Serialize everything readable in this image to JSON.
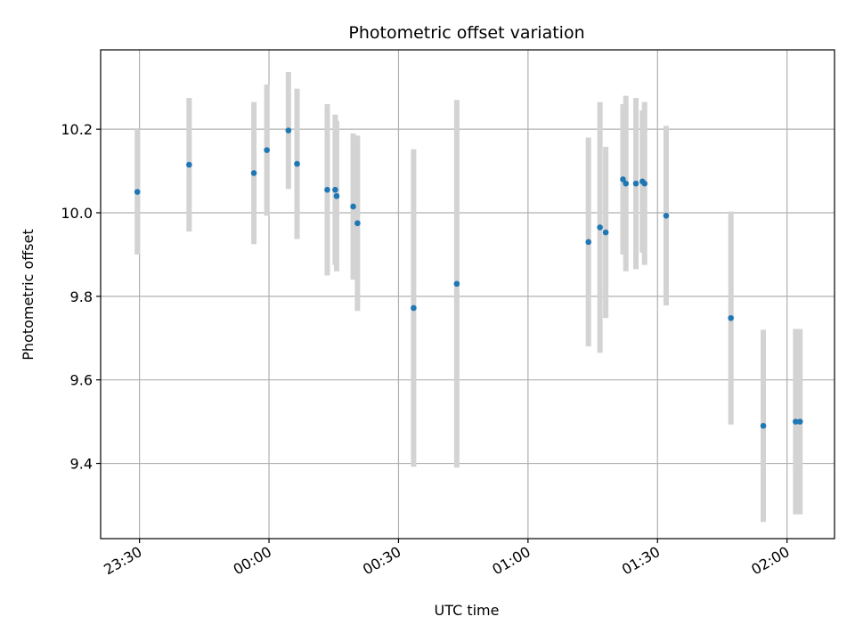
{
  "chart_data": {
    "type": "scatter",
    "title": "Photometric offset variation",
    "xlabel": "UTC time",
    "ylabel": "Photometric offset",
    "x_axis": {
      "kind": "time",
      "range": [
        "23:21",
        "02:11"
      ],
      "ticks": [
        "23:30",
        "00:00",
        "00:30",
        "01:00",
        "01:30",
        "02:00"
      ]
    },
    "y_axis": {
      "range": [
        9.22,
        10.39
      ],
      "ticks": [
        9.4,
        9.6,
        9.8,
        10.0,
        10.2
      ],
      "tick_labels": [
        "9.4",
        "9.6",
        "9.8",
        "10.0",
        "10.2"
      ]
    },
    "grid": true,
    "colors": {
      "point": "#1f77b4",
      "errorbar": "#d3d3d3",
      "grid": "#b0b0b0",
      "axes": "#000000"
    },
    "points": [
      {
        "time": "23:29:30",
        "y": 10.05,
        "err": 0.15
      },
      {
        "time": "23:41:30",
        "y": 10.115,
        "err": 0.16
      },
      {
        "time": "23:56:30",
        "y": 10.095,
        "err": 0.17
      },
      {
        "time": "23:59:30",
        "y": 10.15,
        "err": 0.157
      },
      {
        "time": "00:04:30",
        "y": 10.197,
        "err": 0.14
      },
      {
        "time": "00:06:30",
        "y": 10.117,
        "err": 0.18
      },
      {
        "time": "00:13:30",
        "y": 10.055,
        "err": 0.205
      },
      {
        "time": "00:15:20",
        "y": 10.055,
        "err": 0.18
      },
      {
        "time": "00:15:40",
        "y": 10.04,
        "err": 0.18
      },
      {
        "time": "00:19:30",
        "y": 10.015,
        "err": 0.175
      },
      {
        "time": "00:20:30",
        "y": 9.975,
        "err": 0.21
      },
      {
        "time": "00:33:30",
        "y": 9.772,
        "err": 0.38
      },
      {
        "time": "00:43:30",
        "y": 9.83,
        "err": 0.44
      },
      {
        "time": "01:14:00",
        "y": 9.93,
        "err": 0.25
      },
      {
        "time": "01:16:40",
        "y": 9.965,
        "err": 0.3
      },
      {
        "time": "01:18:00",
        "y": 9.953,
        "err": 0.205
      },
      {
        "time": "01:22:00",
        "y": 10.08,
        "err": 0.18
      },
      {
        "time": "01:22:40",
        "y": 10.07,
        "err": 0.21
      },
      {
        "time": "01:25:00",
        "y": 10.07,
        "err": 0.205
      },
      {
        "time": "01:26:30",
        "y": 10.075,
        "err": 0.17
      },
      {
        "time": "01:27:00",
        "y": 10.07,
        "err": 0.195
      },
      {
        "time": "01:32:00",
        "y": 9.993,
        "err": 0.215
      },
      {
        "time": "01:47:00",
        "y": 9.748,
        "err": 0.255
      },
      {
        "time": "01:54:30",
        "y": 9.49,
        "err": 0.23
      },
      {
        "time": "02:02:00",
        "y": 9.5,
        "err": 0.222
      },
      {
        "time": "02:03:00",
        "y": 9.5,
        "err": 0.222
      }
    ]
  }
}
